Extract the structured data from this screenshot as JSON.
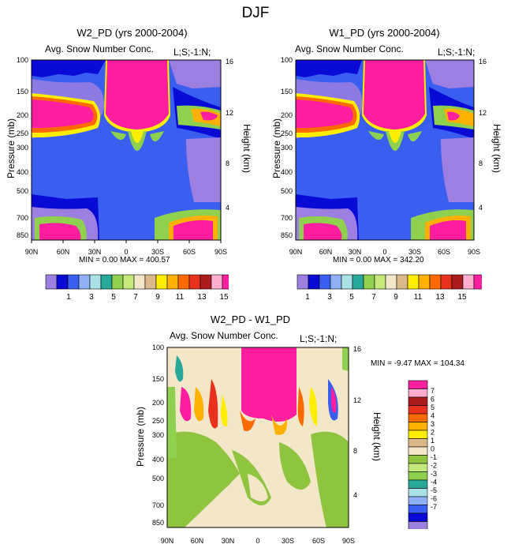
{
  "page": {
    "title": "DJF"
  },
  "chart_data": [
    {
      "type": "heatmap",
      "title": "W2_PD (yrs 2000-2004)",
      "subtitle_left": "Avg. Snow Number Conc.",
      "subtitle_right": "L;S;-1:N;",
      "xlabel": "",
      "ylabel": "Pressure (mb)",
      "y2label": "Height (km)",
      "x_ticks": [
        "90N",
        "60N",
        "30N",
        "0",
        "30S",
        "60S",
        "90S"
      ],
      "x_values": [
        90,
        60,
        30,
        0,
        -30,
        -60,
        -90
      ],
      "y_ticks": [
        "100",
        "150",
        "200",
        "250",
        "300",
        "400",
        "500",
        "700",
        "850"
      ],
      "y_values": [
        100,
        150,
        200,
        250,
        300,
        400,
        500,
        700,
        850
      ],
      "y2_ticks": [
        "4",
        "8",
        "12",
        "16"
      ],
      "ylim": [
        100,
        925
      ],
      "stats": "MIN =  0.00  MAX = 400.57",
      "min": 0.0,
      "max": 400.57
    },
    {
      "type": "heatmap",
      "title": "W1_PD (yrs 2000-2004)",
      "subtitle_left": "Avg. Snow Number Conc.",
      "subtitle_right": "L;S;-1:N;",
      "xlabel": "",
      "ylabel": "Pressure (mb)",
      "y2label": "Height (km)",
      "x_ticks": [
        "90N",
        "60N",
        "30N",
        "0",
        "30S",
        "60S",
        "90S"
      ],
      "x_values": [
        90,
        60,
        30,
        0,
        -30,
        -60,
        -90
      ],
      "y_ticks": [
        "100",
        "150",
        "200",
        "250",
        "300",
        "400",
        "500",
        "700",
        "850"
      ],
      "y_values": [
        100,
        150,
        200,
        250,
        300,
        400,
        500,
        700,
        850
      ],
      "y2_ticks": [
        "4",
        "8",
        "12",
        "16"
      ],
      "ylim": [
        100,
        925
      ],
      "stats": "MIN =  0.00  MAX = 342.20",
      "min": 0.0,
      "max": 342.2
    },
    {
      "type": "heatmap",
      "title": "W2_PD - W1_PD",
      "subtitle_left": "Avg. Snow Number Conc.",
      "subtitle_right": "L;S;-1:N;",
      "xlabel": "",
      "ylabel": "Pressure (mb)",
      "y2label": "Height (km)",
      "x_ticks": [
        "90N",
        "60N",
        "30N",
        "0",
        "30S",
        "60S",
        "90S"
      ],
      "x_values": [
        90,
        60,
        30,
        0,
        -30,
        -60,
        -90
      ],
      "y_ticks": [
        "100",
        "150",
        "200",
        "250",
        "300",
        "400",
        "500",
        "700",
        "850"
      ],
      "y_values": [
        100,
        150,
        200,
        250,
        300,
        400,
        500,
        700,
        850
      ],
      "y2_ticks": [
        "4",
        "8",
        "12",
        "16"
      ],
      "ylim": [
        100,
        925
      ],
      "stats": "MIN = -9.47   MAX = 104.34",
      "min": -9.47,
      "max": 104.34
    }
  ],
  "colorbar_top": {
    "colors": [
      "#9c7fe0",
      "#0a0ad6",
      "#3a5ff0",
      "#8fb0f4",
      "#a9e1e6",
      "#27a899",
      "#8fd14f",
      "#c5e87a",
      "#f3e7c9",
      "#dbb889",
      "#ffee00",
      "#ffb000",
      "#ff6a00",
      "#e8321e",
      "#ad1c1c",
      "#ffaed0",
      "#ff1ea0"
    ],
    "labels": [
      "1",
      "3",
      "5",
      "7",
      "9",
      "11",
      "13",
      "15"
    ]
  },
  "colorbar_diff": {
    "colors": [
      "#ff1ea0",
      "#ffaed0",
      "#ad1c1c",
      "#e8321e",
      "#ff6a00",
      "#ffb000",
      "#ffee00",
      "#dbb889",
      "#f3e7c9",
      "#8fc43f",
      "#c5e87a",
      "#8fd14f",
      "#27a899",
      "#a9e1e6",
      "#8fb0f4",
      "#3a5ff0",
      "#0a0ad6",
      "#9c7fe0"
    ],
    "labels": [
      "7",
      "6",
      "5",
      "4",
      "3",
      "2",
      "1",
      "0",
      "-1",
      "-2",
      "-3",
      "-4",
      "-5",
      "-6",
      "-7"
    ]
  }
}
